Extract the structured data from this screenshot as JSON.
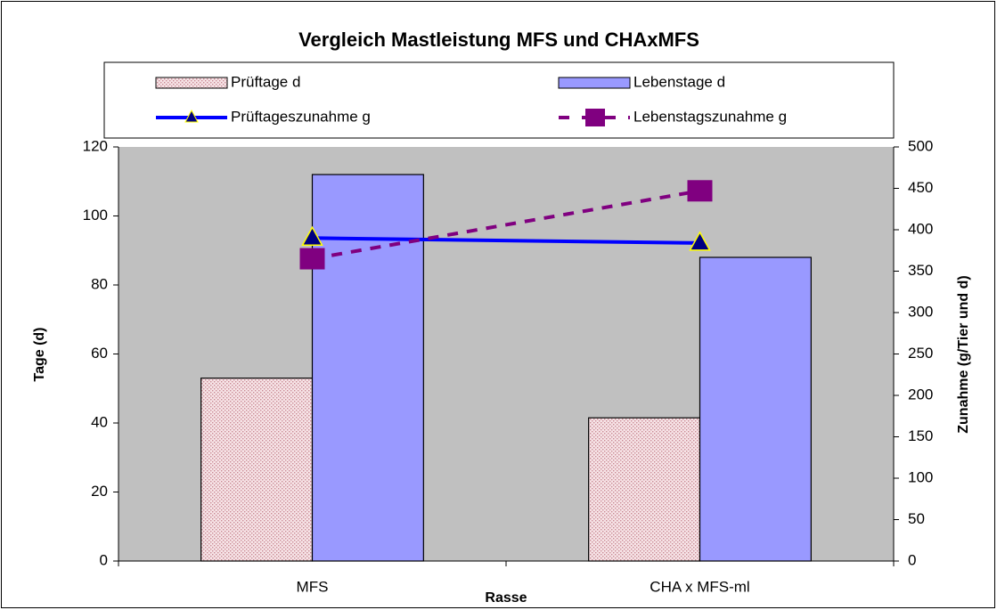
{
  "chart_data": {
    "type": "combo",
    "title": "Vergleich Mastleistung MFS und CHAxMFS",
    "x_label": "Rasse",
    "y_label": "Tage (d)",
    "y2_label": "Zunahme (g/Tier und d)",
    "categories": [
      "MFS",
      "CHA x MFS-ml"
    ],
    "series": [
      {
        "name": "Prüftage d",
        "type": "bar",
        "color": "#f2d4d8",
        "values": [
          53,
          41.5
        ]
      },
      {
        "name": "Lebenstage d",
        "type": "bar",
        "color": "#9999ff",
        "values": [
          112,
          88
        ]
      },
      {
        "name": "Prüftageszunahme g",
        "type": "line",
        "axis": "y2",
        "color": "#0000ff",
        "values": [
          390,
          384
        ]
      },
      {
        "name": "Lebenstagszunahme g",
        "type": "line",
        "axis": "y2",
        "color": "#800080",
        "values": [
          365,
          447
        ]
      }
    ],
    "ylim": [
      0,
      120
    ],
    "yticks": [
      0,
      20,
      40,
      60,
      80,
      100,
      120
    ],
    "y2lim": [
      0,
      500
    ],
    "y2ticks": [
      0,
      50,
      100,
      150,
      200,
      250,
      300,
      350,
      400,
      450,
      500
    ],
    "legend": "top",
    "grid": false,
    "background": "#c0c0c0"
  }
}
